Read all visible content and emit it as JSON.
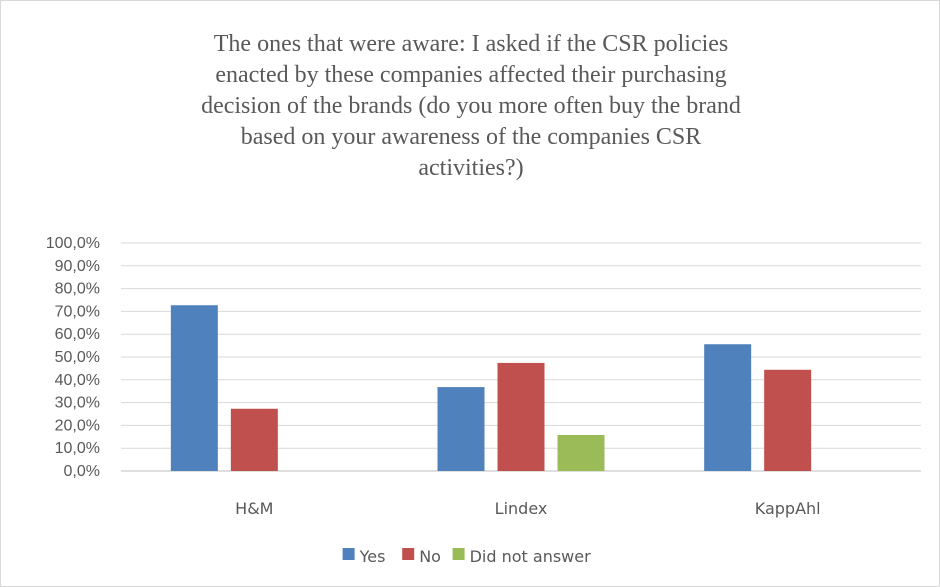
{
  "chart_data": {
    "type": "bar",
    "title": "The ones that were aware: I asked if the CSR policies enacted by these companies affected their purchasing decision of the brands (do you more often buy the brand based on your awareness of the companies CSR activities?)",
    "categories": [
      "H&M",
      "Lindex",
      "KappAhl"
    ],
    "series": [
      {
        "name": "Yes",
        "color": "#4f81bd",
        "values": [
          72.7,
          36.8,
          55.6
        ]
      },
      {
        "name": "No",
        "color": "#c0504d",
        "values": [
          27.3,
          47.4,
          44.4
        ]
      },
      {
        "name": "Did not answer",
        "color": "#9bbb59",
        "values": [
          null,
          15.8,
          null
        ]
      }
    ],
    "ylim": [
      0,
      100
    ],
    "yticks": [
      "0,0%",
      "10,0%",
      "20,0%",
      "30,0%",
      "40,0%",
      "50,0%",
      "60,0%",
      "70,0%",
      "80,0%",
      "90,0%",
      "100,0%"
    ],
    "xlabel": "",
    "ylabel": "",
    "grid": true,
    "legend_position": "bottom"
  }
}
